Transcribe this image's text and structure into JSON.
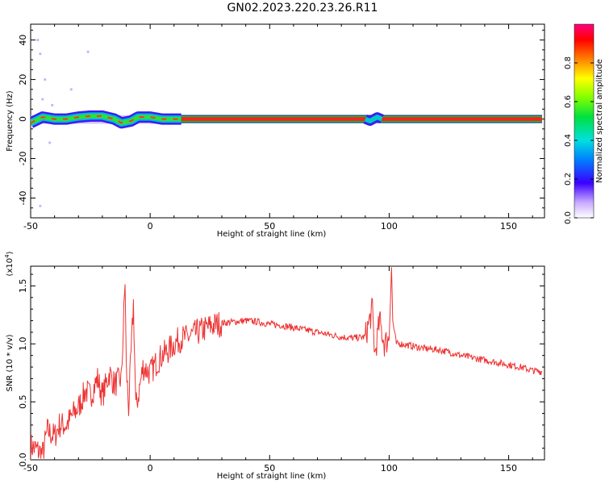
{
  "title": "GN02.2023.220.23.26.R11",
  "chart_data": [
    {
      "type": "heatmap",
      "xlabel": "Height of straight line (km)",
      "ylabel": "Frequency (Hz)",
      "xlim": [
        -50,
        165
      ],
      "ylim": [
        -50,
        48
      ],
      "xticks": [
        -50,
        0,
        50,
        100,
        150
      ],
      "yticks": [
        -40,
        -20,
        0,
        20,
        40
      ],
      "colorbar": {
        "label": "Normalized spectral amplitude",
        "ticks": [
          "0.0",
          "0.2",
          "0.4",
          "0.6",
          "0.8"
        ],
        "range": [
          0,
          1
        ]
      },
      "track": [
        {
          "x": -50,
          "y": -2
        },
        {
          "x": -45,
          "y": 1
        },
        {
          "x": -40,
          "y": 0
        },
        {
          "x": -35,
          "y": 0
        },
        {
          "x": -30,
          "y": 1
        },
        {
          "x": -25,
          "y": 1.5
        },
        {
          "x": -20,
          "y": 1.5
        },
        {
          "x": -15,
          "y": 0
        },
        {
          "x": -12,
          "y": -2
        },
        {
          "x": -8,
          "y": -1
        },
        {
          "x": -5,
          "y": 1
        },
        {
          "x": 0,
          "y": 1
        },
        {
          "x": 5,
          "y": 0
        },
        {
          "x": 10,
          "y": 0
        },
        {
          "x": 13,
          "y": 0
        },
        {
          "x": 90,
          "y": 0
        },
        {
          "x": 92,
          "y": -1
        },
        {
          "x": 95,
          "y": 1
        },
        {
          "x": 97,
          "y": 0
        },
        {
          "x": 164,
          "y": 0
        }
      ]
    },
    {
      "type": "line",
      "xlabel": "Height of straight line (km)",
      "ylabel": "SNR (10 * v/v)",
      "yscale_label": "(x10",
      "yscale_exp": "4",
      "xlim": [
        -50,
        165
      ],
      "ylim": [
        0,
        1.67
      ],
      "xticks": [
        -50,
        0,
        50,
        100,
        150
      ],
      "yticks": [
        "0.0",
        "0.5",
        "1.0",
        "1.5"
      ],
      "color": "#ee3333",
      "series": [
        {
          "x": [
            -50,
            -47,
            -45,
            -43,
            -40,
            -38,
            -35,
            -32,
            -30,
            -27,
            -25,
            -22,
            -20,
            -17,
            -15,
            -12,
            -10.5,
            -10,
            -9,
            -7,
            -6,
            -5,
            -3,
            0,
            3,
            5,
            8,
            10,
            13,
            15,
            20,
            25,
            30,
            35,
            40,
            45,
            50,
            55,
            60,
            65,
            70,
            75,
            80,
            85,
            90,
            93,
            94,
            96,
            98,
            100,
            101,
            101.5,
            103,
            105,
            110,
            115,
            120,
            125,
            130,
            135,
            140,
            145,
            150,
            155,
            160,
            164
          ],
          "y": [
            0.12,
            0.08,
            0.05,
            0.25,
            0.2,
            0.3,
            0.3,
            0.4,
            0.45,
            0.6,
            0.55,
            0.7,
            0.55,
            0.75,
            0.65,
            0.7,
            1.55,
            0.8,
            0.45,
            1.35,
            0.45,
            0.55,
            0.8,
            0.75,
            0.85,
            0.9,
            0.95,
            1.0,
            1.05,
            1.05,
            1.1,
            1.15,
            1.18,
            1.19,
            1.2,
            1.19,
            1.17,
            1.16,
            1.14,
            1.12,
            1.1,
            1.08,
            1.06,
            1.05,
            1.06,
            1.3,
            0.9,
            1.2,
            1.0,
            1.05,
            1.67,
            1.2,
            1.0,
            1.0,
            0.98,
            0.96,
            0.95,
            0.93,
            0.9,
            0.88,
            0.86,
            0.84,
            0.82,
            0.8,
            0.77,
            0.76
          ]
        }
      ]
    }
  ]
}
